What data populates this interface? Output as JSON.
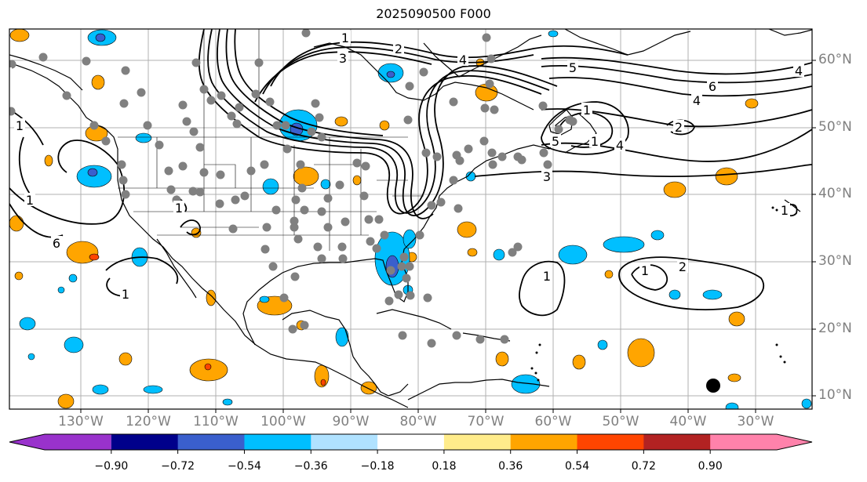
{
  "title": "2025090500 F000",
  "colors": {
    "background": "#ffffff",
    "coastline": "#000000",
    "state_borders": "#000000",
    "gridlines": "#b0b0b0",
    "station_dots": "#808080",
    "contours": "#000000"
  },
  "map": {
    "lon_range": [
      -140,
      -20
    ],
    "lat_range": [
      8,
      65
    ],
    "longitude_labels": [
      "130°W",
      "120°W",
      "110°W",
      "100°W",
      "90°W",
      "80°W",
      "70°W",
      "60°W",
      "50°W",
      "40°W",
      "30°W"
    ],
    "latitude_labels": [
      "60°N",
      "50°N",
      "40°N",
      "30°N",
      "20°N",
      "10°N"
    ],
    "contour_labels": [
      "1",
      "2",
      "3",
      "4",
      "5",
      "6",
      "4",
      "2",
      "1",
      "4",
      "5",
      "3",
      "4",
      "6",
      "1",
      "1",
      "1",
      "2",
      "1",
      "1",
      "1",
      "1",
      "1",
      "1"
    ]
  },
  "colorbar": {
    "colors": [
      "#9932cc",
      "#00008b",
      "#3a5fcd",
      "#00bfff",
      "#b0e2ff",
      "#ffffff",
      "#ffec8b",
      "#ffa500",
      "#ff4500",
      "#b22222",
      "#ff82ab"
    ],
    "tick_labels": [
      "−0.90",
      "−0.72",
      "−0.54",
      "−0.36",
      "−0.18",
      "0.18",
      "0.36",
      "0.54",
      "0.72",
      "0.90"
    ]
  }
}
